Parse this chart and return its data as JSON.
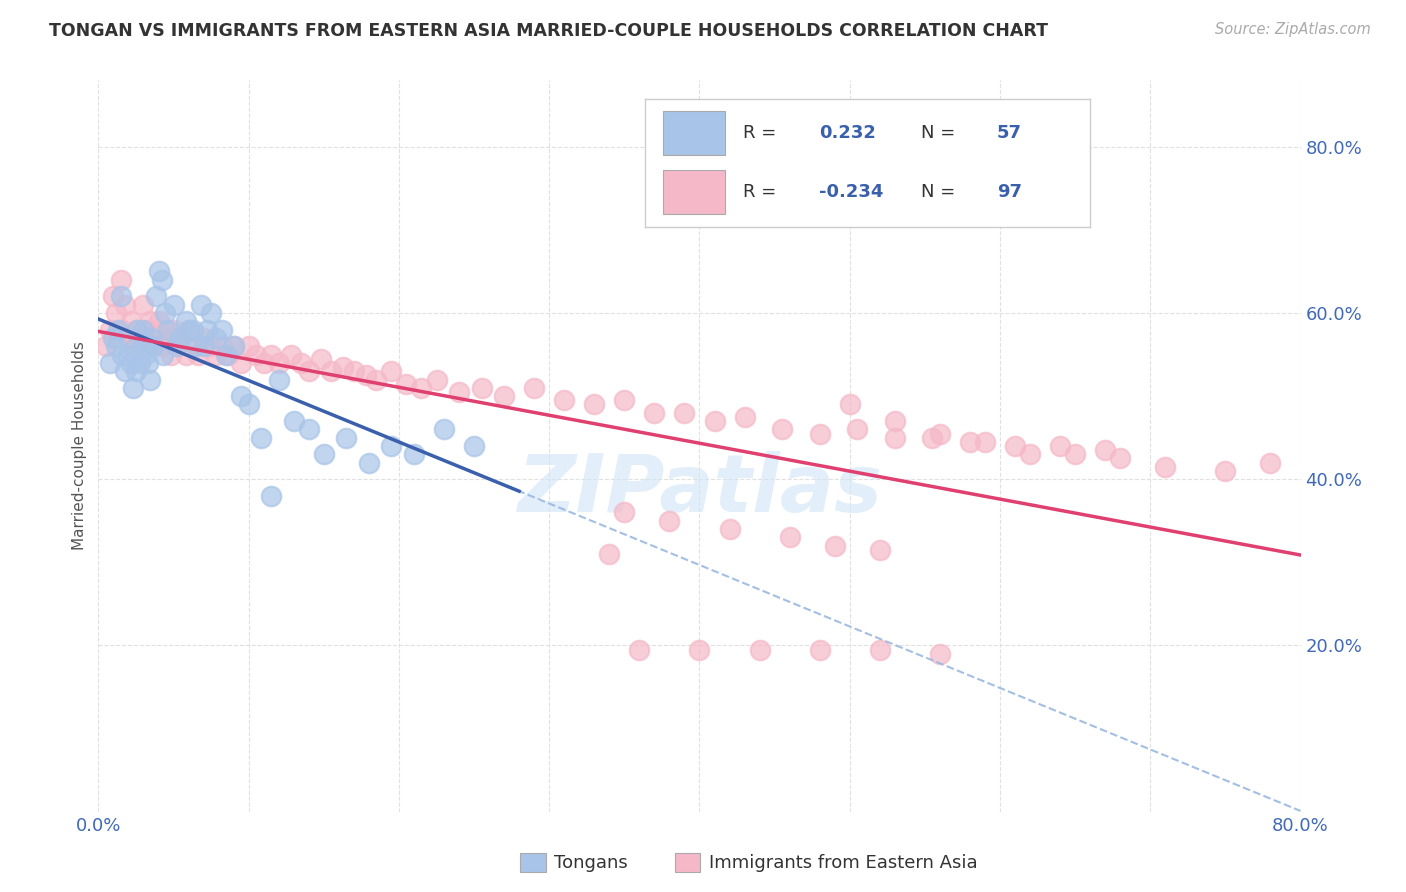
{
  "title": "TONGAN VS IMMIGRANTS FROM EASTERN ASIA MARRIED-COUPLE HOUSEHOLDS CORRELATION CHART",
  "source": "Source: ZipAtlas.com",
  "ylabel": "Married-couple Households",
  "xmin": 0.0,
  "xmax": 0.8,
  "ymin": 0.0,
  "ymax": 0.88,
  "yticks": [
    0.2,
    0.4,
    0.6,
    0.8
  ],
  "ytick_labels": [
    "20.0%",
    "40.0%",
    "60.0%",
    "80.0%"
  ],
  "blue_color": "#a8c4e8",
  "pink_color": "#f5b8c8",
  "blue_line_color": "#3a5fad",
  "pink_line_color": "#e04070",
  "dashed_line_color": "#9ab8e0",
  "watermark_text": "ZIPatlas",
  "watermark_color": "#d0e4f5",
  "tongans_x": [
    0.008,
    0.01,
    0.012,
    0.013,
    0.015,
    0.016,
    0.018,
    0.02,
    0.022,
    0.023,
    0.025,
    0.025,
    0.026,
    0.028,
    0.03,
    0.03,
    0.031,
    0.032,
    0.033,
    0.034,
    0.035,
    0.036,
    0.038,
    0.04,
    0.042,
    0.043,
    0.044,
    0.046,
    0.05,
    0.052,
    0.054,
    0.058,
    0.06,
    0.063,
    0.065,
    0.068,
    0.07,
    0.072,
    0.075,
    0.078,
    0.082,
    0.085,
    0.09,
    0.095,
    0.1,
    0.108,
    0.115,
    0.12,
    0.13,
    0.14,
    0.15,
    0.165,
    0.18,
    0.195,
    0.21,
    0.23,
    0.25
  ],
  "tongans_y": [
    0.54,
    0.57,
    0.56,
    0.58,
    0.62,
    0.55,
    0.53,
    0.55,
    0.54,
    0.51,
    0.56,
    0.53,
    0.58,
    0.54,
    0.56,
    0.58,
    0.55,
    0.56,
    0.54,
    0.52,
    0.57,
    0.56,
    0.62,
    0.65,
    0.64,
    0.55,
    0.6,
    0.58,
    0.61,
    0.56,
    0.57,
    0.59,
    0.58,
    0.58,
    0.56,
    0.61,
    0.56,
    0.58,
    0.6,
    0.57,
    0.58,
    0.55,
    0.56,
    0.5,
    0.49,
    0.45,
    0.38,
    0.52,
    0.47,
    0.46,
    0.43,
    0.45,
    0.42,
    0.44,
    0.43,
    0.46,
    0.44
  ],
  "eastern_asia_x": [
    0.005,
    0.008,
    0.01,
    0.012,
    0.015,
    0.016,
    0.018,
    0.02,
    0.022,
    0.024,
    0.026,
    0.028,
    0.03,
    0.032,
    0.034,
    0.036,
    0.038,
    0.04,
    0.042,
    0.044,
    0.046,
    0.048,
    0.05,
    0.052,
    0.055,
    0.058,
    0.06,
    0.063,
    0.066,
    0.07,
    0.074,
    0.078,
    0.082,
    0.086,
    0.09,
    0.095,
    0.1,
    0.105,
    0.11,
    0.115,
    0.12,
    0.128,
    0.135,
    0.14,
    0.148,
    0.155,
    0.163,
    0.17,
    0.178,
    0.185,
    0.195,
    0.205,
    0.215,
    0.225,
    0.24,
    0.255,
    0.27,
    0.29,
    0.31,
    0.33,
    0.35,
    0.37,
    0.39,
    0.41,
    0.43,
    0.455,
    0.48,
    0.505,
    0.53,
    0.555,
    0.58,
    0.61,
    0.64,
    0.67,
    0.5,
    0.53,
    0.56,
    0.59,
    0.62,
    0.65,
    0.68,
    0.71,
    0.75,
    0.78,
    0.35,
    0.38,
    0.42,
    0.46,
    0.49,
    0.52,
    0.34,
    0.36,
    0.4,
    0.44,
    0.48,
    0.52,
    0.56
  ],
  "eastern_asia_y": [
    0.56,
    0.58,
    0.62,
    0.6,
    0.64,
    0.58,
    0.61,
    0.57,
    0.59,
    0.56,
    0.58,
    0.57,
    0.61,
    0.58,
    0.59,
    0.56,
    0.57,
    0.59,
    0.56,
    0.58,
    0.57,
    0.55,
    0.58,
    0.56,
    0.57,
    0.55,
    0.58,
    0.56,
    0.55,
    0.57,
    0.56,
    0.55,
    0.56,
    0.55,
    0.56,
    0.54,
    0.56,
    0.55,
    0.54,
    0.55,
    0.54,
    0.55,
    0.54,
    0.53,
    0.545,
    0.53,
    0.535,
    0.53,
    0.525,
    0.52,
    0.53,
    0.515,
    0.51,
    0.52,
    0.505,
    0.51,
    0.5,
    0.51,
    0.495,
    0.49,
    0.495,
    0.48,
    0.48,
    0.47,
    0.475,
    0.46,
    0.455,
    0.46,
    0.45,
    0.45,
    0.445,
    0.44,
    0.44,
    0.435,
    0.49,
    0.47,
    0.455,
    0.445,
    0.43,
    0.43,
    0.425,
    0.415,
    0.41,
    0.42,
    0.36,
    0.35,
    0.34,
    0.33,
    0.32,
    0.315,
    0.31,
    0.195,
    0.195,
    0.195,
    0.195,
    0.195,
    0.19
  ]
}
